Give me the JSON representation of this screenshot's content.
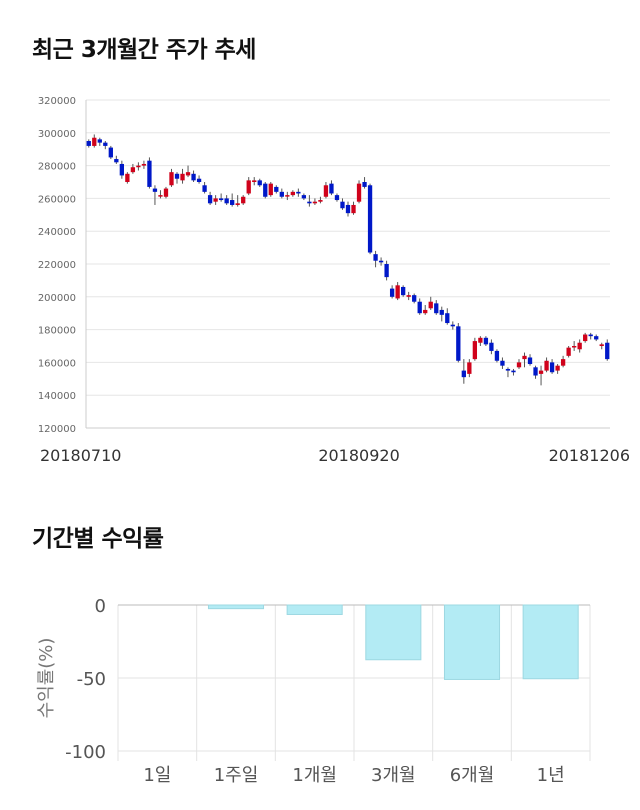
{
  "sections": {
    "price_title": "최근 3개월간 주가 추세",
    "return_title": "기간별 수익률"
  },
  "colors": {
    "up": "#d0021b",
    "down": "#0018c8",
    "bar": "#b3ebf4",
    "bar_border": "#9dd8e2"
  },
  "chart_data": [
    {
      "type": "candlestick",
      "title": "최근 3개월간 주가 추세",
      "ylim": [
        120000,
        320000
      ],
      "yticks": [
        "320000",
        "300000",
        "280000",
        "260000",
        "240000",
        "220000",
        "200000",
        "180000",
        "160000",
        "140000",
        "120000"
      ],
      "xtick_labels": [
        "20180710",
        "20180920",
        "20181206"
      ],
      "xtick_index": [
        0,
        49,
        101
      ],
      "grid": true,
      "ohlc": [
        [
          295000,
          296000,
          291000,
          292000
        ],
        [
          292000,
          299000,
          291000,
          297000
        ],
        [
          296000,
          297000,
          292000,
          294000
        ],
        [
          294000,
          295000,
          290000,
          292000
        ],
        [
          291000,
          292000,
          284000,
          285000
        ],
        [
          284000,
          286000,
          281000,
          282000
        ],
        [
          281000,
          283000,
          272000,
          274000
        ],
        [
          270000,
          276000,
          269000,
          275000
        ],
        [
          276000,
          281000,
          275000,
          279000
        ],
        [
          279000,
          282000,
          277000,
          280000
        ],
        [
          280000,
          283000,
          278000,
          281000
        ],
        [
          283000,
          285000,
          266000,
          267000
        ],
        [
          266000,
          268000,
          256000,
          264000
        ],
        [
          262000,
          265000,
          260000,
          262000
        ],
        [
          261000,
          267000,
          260000,
          266000
        ],
        [
          268000,
          278000,
          267000,
          276000
        ],
        [
          275000,
          276000,
          269000,
          272000
        ],
        [
          271000,
          278000,
          269000,
          275000
        ],
        [
          274000,
          280000,
          273000,
          276000
        ],
        [
          275000,
          277000,
          270000,
          271000
        ],
        [
          272000,
          274000,
          269000,
          270000
        ],
        [
          268000,
          270000,
          263000,
          264000
        ],
        [
          262000,
          264000,
          256000,
          257000
        ],
        [
          258000,
          262000,
          256000,
          260000
        ],
        [
          260000,
          263000,
          258000,
          259000
        ],
        [
          260000,
          262000,
          256000,
          257000
        ],
        [
          259000,
          263000,
          255000,
          256000
        ],
        [
          256000,
          262000,
          255000,
          257000
        ],
        [
          257000,
          262000,
          256000,
          261000
        ],
        [
          263000,
          273000,
          262000,
          271000
        ],
        [
          270000,
          273000,
          268000,
          271000
        ],
        [
          271000,
          272000,
          267000,
          268000
        ],
        [
          269000,
          270000,
          260000,
          261000
        ],
        [
          262000,
          270000,
          261000,
          269000
        ],
        [
          267000,
          268000,
          263000,
          264000
        ],
        [
          264000,
          266000,
          260000,
          261000
        ],
        [
          262000,
          264000,
          259000,
          262000
        ],
        [
          262000,
          265000,
          261000,
          264000
        ],
        [
          264000,
          266000,
          261000,
          263000
        ],
        [
          262000,
          263000,
          259000,
          260000
        ],
        [
          258000,
          262000,
          255000,
          257000
        ],
        [
          257000,
          260000,
          256000,
          258000
        ],
        [
          258000,
          261000,
          257000,
          259000
        ],
        [
          261000,
          270000,
          260000,
          268000
        ],
        [
          269000,
          271000,
          262000,
          263000
        ],
        [
          262000,
          263000,
          258000,
          259000
        ],
        [
          258000,
          260000,
          253000,
          254000
        ],
        [
          256000,
          258000,
          249000,
          251000
        ],
        [
          251000,
          258000,
          250000,
          256000
        ],
        [
          258000,
          271000,
          257000,
          269000
        ],
        [
          270000,
          273000,
          266000,
          267000
        ],
        [
          268000,
          269000,
          226000,
          227000
        ],
        [
          226000,
          228000,
          218000,
          222000
        ],
        [
          222000,
          224000,
          219000,
          221000
        ],
        [
          220000,
          222000,
          210000,
          212000
        ],
        [
          205000,
          207000,
          199000,
          200000
        ],
        [
          199000,
          209000,
          198000,
          207000
        ],
        [
          206000,
          207000,
          200000,
          201000
        ],
        [
          200000,
          203000,
          198000,
          201000
        ],
        [
          201000,
          202000,
          196000,
          197000
        ],
        [
          197000,
          199000,
          189000,
          190000
        ],
        [
          190000,
          195000,
          189000,
          192000
        ],
        [
          193000,
          200000,
          192000,
          197000
        ],
        [
          196000,
          198000,
          189000,
          190000
        ],
        [
          192000,
          194000,
          185000,
          189000
        ],
        [
          190000,
          193000,
          183000,
          184000
        ],
        [
          183000,
          185000,
          180000,
          182000
        ],
        [
          182000,
          184000,
          160000,
          161000
        ],
        [
          155000,
          162000,
          147000,
          151000
        ],
        [
          153000,
          162000,
          151000,
          160000
        ],
        [
          162000,
          175000,
          161000,
          173000
        ],
        [
          172000,
          176000,
          170000,
          175000
        ],
        [
          175000,
          176000,
          170000,
          171000
        ],
        [
          172000,
          174000,
          165000,
          167000
        ],
        [
          167000,
          168000,
          160000,
          161000
        ],
        [
          161000,
          163000,
          156000,
          158000
        ],
        [
          156000,
          157000,
          151000,
          155000
        ],
        [
          155000,
          156000,
          152000,
          154000
        ],
        [
          157000,
          162000,
          156000,
          160000
        ],
        [
          162000,
          166000,
          157000,
          164000
        ],
        [
          163000,
          165000,
          158000,
          159000
        ],
        [
          157000,
          158000,
          150000,
          152000
        ],
        [
          153000,
          158000,
          146000,
          155000
        ],
        [
          155000,
          163000,
          154000,
          161000
        ],
        [
          160000,
          162000,
          153000,
          154000
        ],
        [
          155000,
          159000,
          153000,
          158000
        ],
        [
          158000,
          164000,
          157000,
          162000
        ],
        [
          164000,
          170000,
          163000,
          169000
        ],
        [
          170000,
          173000,
          167000,
          170000
        ],
        [
          168000,
          174000,
          166000,
          172000
        ],
        [
          173000,
          178000,
          172000,
          177000
        ],
        [
          177000,
          178000,
          174000,
          176000
        ],
        [
          176000,
          177000,
          173000,
          174000
        ],
        [
          170000,
          172000,
          168000,
          171000
        ],
        [
          172000,
          174000,
          161000,
          162000
        ]
      ]
    },
    {
      "type": "bar",
      "title": "기간별 수익률",
      "categories": [
        "1일",
        "1주일",
        "1개월",
        "3개월",
        "6개월",
        "1년"
      ],
      "values": [
        0,
        -2.5,
        -6.5,
        -37.5,
        -51,
        -50.5
      ],
      "ylabel": "수익률(%)",
      "ylim": [
        -100,
        0
      ],
      "yticks": [
        "0",
        "-50",
        "-100"
      ],
      "grid": true
    }
  ]
}
